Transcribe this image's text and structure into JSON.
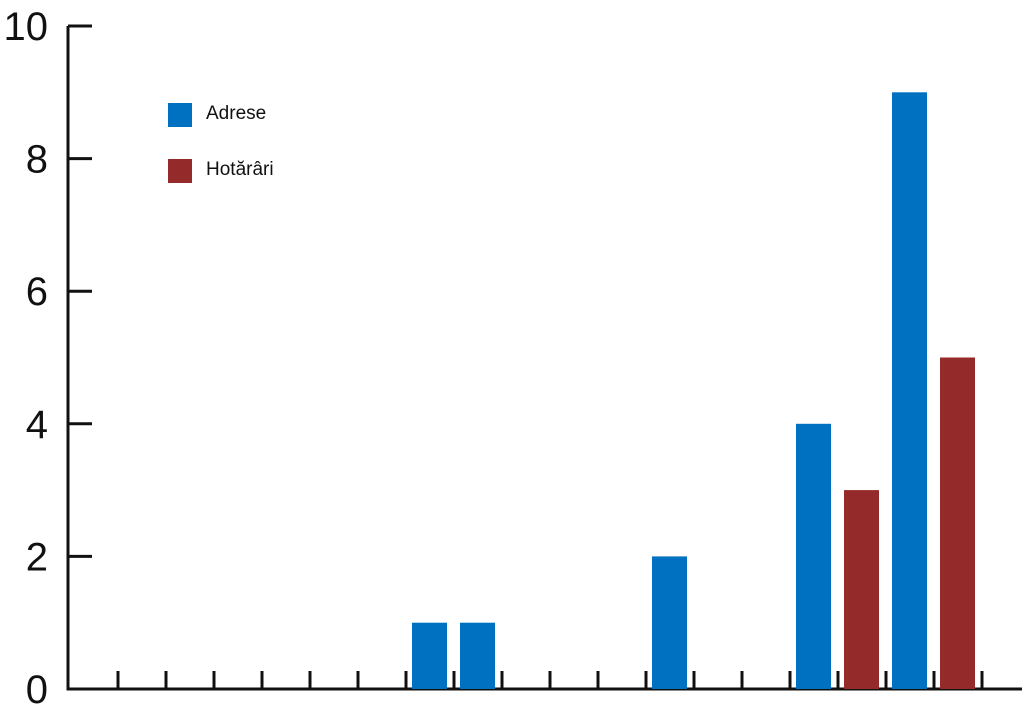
{
  "chart_data": {
    "type": "bar",
    "title": "",
    "xlabel": "",
    "ylabel": "",
    "ylim": [
      0,
      10
    ],
    "yticks": [
      "0",
      "2",
      "4",
      "6",
      "8",
      "10"
    ],
    "grid": false,
    "legend_position": "top-left",
    "x_ticks_count": 19,
    "bars": [
      {
        "series": "Adrese",
        "slot": 6,
        "value": 1
      },
      {
        "series": "Adrese",
        "slot": 7,
        "value": 1
      },
      {
        "series": "Adrese",
        "slot": 11,
        "value": 2
      },
      {
        "series": "Adrese",
        "slot": 14,
        "value": 4
      },
      {
        "series": "Hotărâri",
        "slot": 15,
        "value": 3
      },
      {
        "series": "Adrese",
        "slot": 16,
        "value": 9
      },
      {
        "series": "Hotărâri",
        "slot": 17,
        "value": 5
      }
    ],
    "series": [
      {
        "name": "Adrese",
        "color": "#0070c0"
      },
      {
        "name": "Hotărâri",
        "color": "#952a2a"
      }
    ]
  }
}
